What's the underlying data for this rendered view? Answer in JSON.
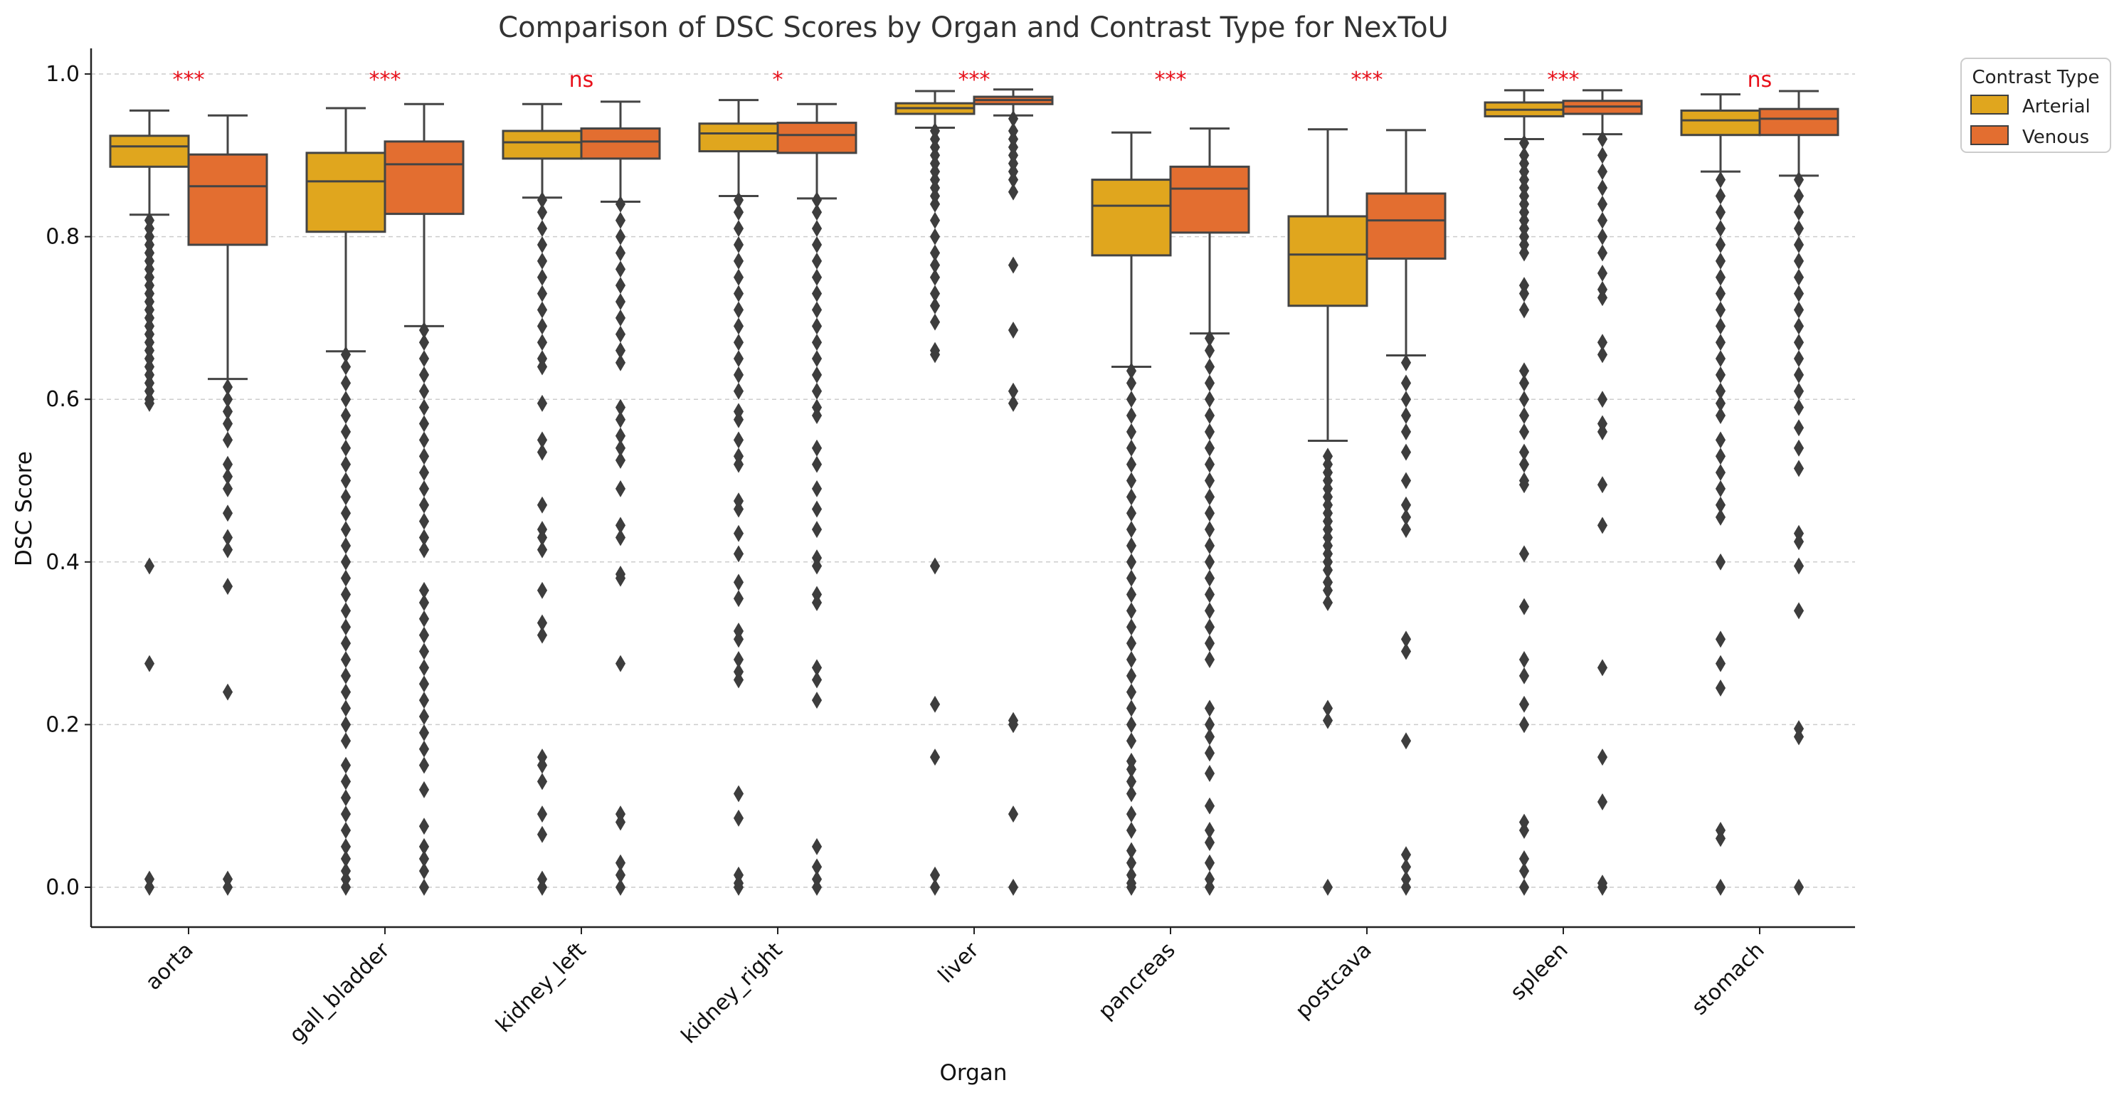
{
  "chart_data": {
    "type": "box",
    "title": "Comparison of DSC Scores by Organ and Contrast Type for NexToU",
    "xlabel": "Organ",
    "ylabel": "DSC Score",
    "ylim": [
      -0.05,
      1.03
    ],
    "yticks": [
      "0.0",
      "0.2",
      "0.4",
      "0.6",
      "0.8",
      "1.0"
    ],
    "grid": "horizontal dashed",
    "legend": {
      "title": "Contrast Type",
      "position": "top-right outside"
    },
    "categories": [
      "aorta",
      "gall_bladder",
      "kidney_left",
      "kidney_right",
      "liver",
      "pancreas",
      "postcava",
      "spleen",
      "stomach"
    ],
    "significance": [
      "***",
      "***",
      "ns",
      "*",
      "***",
      "***",
      "***",
      "***",
      "ns"
    ],
    "series": [
      {
        "name": "Arterial",
        "color": "#e0a61e",
        "boxes": [
          {
            "whisker_low": 0.827,
            "q1": 0.886,
            "median": 0.911,
            "q3": 0.924,
            "whisker_high": 0.955,
            "outliers": [
              0.82,
              0.81,
              0.8,
              0.79,
              0.78,
              0.77,
              0.76,
              0.75,
              0.74,
              0.73,
              0.72,
              0.71,
              0.7,
              0.69,
              0.68,
              0.67,
              0.66,
              0.65,
              0.64,
              0.63,
              0.62,
              0.61,
              0.6,
              0.595,
              0.395,
              0.275,
              0.01,
              0.0
            ]
          },
          {
            "whisker_low": 0.659,
            "q1": 0.806,
            "median": 0.868,
            "q3": 0.903,
            "whisker_high": 0.958,
            "outliers": [
              0.655,
              0.64,
              0.62,
              0.6,
              0.58,
              0.56,
              0.54,
              0.52,
              0.5,
              0.48,
              0.46,
              0.44,
              0.42,
              0.4,
              0.38,
              0.36,
              0.34,
              0.32,
              0.3,
              0.28,
              0.26,
              0.24,
              0.22,
              0.2,
              0.18,
              0.15,
              0.13,
              0.11,
              0.09,
              0.07,
              0.05,
              0.035,
              0.02,
              0.01,
              0.0
            ]
          },
          {
            "whisker_low": 0.848,
            "q1": 0.896,
            "median": 0.916,
            "q3": 0.93,
            "whisker_high": 0.963,
            "outliers": [
              0.845,
              0.83,
              0.81,
              0.79,
              0.77,
              0.75,
              0.73,
              0.71,
              0.69,
              0.67,
              0.65,
              0.64,
              0.595,
              0.55,
              0.535,
              0.47,
              0.44,
              0.43,
              0.415,
              0.365,
              0.325,
              0.31,
              0.16,
              0.15,
              0.13,
              0.09,
              0.065,
              0.01,
              0.0
            ]
          },
          {
            "whisker_low": 0.85,
            "q1": 0.905,
            "median": 0.927,
            "q3": 0.939,
            "whisker_high": 0.968,
            "outliers": [
              0.845,
              0.83,
              0.81,
              0.79,
              0.77,
              0.75,
              0.73,
              0.71,
              0.69,
              0.67,
              0.65,
              0.63,
              0.61,
              0.585,
              0.575,
              0.55,
              0.53,
              0.52,
              0.475,
              0.465,
              0.435,
              0.41,
              0.375,
              0.355,
              0.315,
              0.305,
              0.28,
              0.265,
              0.255,
              0.115,
              0.085,
              0.015,
              0.005,
              0.0
            ]
          },
          {
            "whisker_low": 0.934,
            "q1": 0.951,
            "median": 0.958,
            "q3": 0.964,
            "whisker_high": 0.979,
            "outliers": [
              0.93,
              0.92,
              0.91,
              0.9,
              0.89,
              0.88,
              0.87,
              0.86,
              0.85,
              0.84,
              0.82,
              0.8,
              0.78,
              0.765,
              0.75,
              0.73,
              0.715,
              0.695,
              0.66,
              0.655,
              0.395,
              0.225,
              0.16,
              0.015,
              0.0
            ]
          },
          {
            "whisker_low": 0.64,
            "q1": 0.777,
            "median": 0.838,
            "q3": 0.87,
            "whisker_high": 0.928,
            "outliers": [
              0.635,
              0.62,
              0.6,
              0.58,
              0.56,
              0.54,
              0.52,
              0.5,
              0.48,
              0.46,
              0.44,
              0.42,
              0.4,
              0.38,
              0.36,
              0.34,
              0.32,
              0.3,
              0.28,
              0.26,
              0.24,
              0.22,
              0.2,
              0.18,
              0.155,
              0.145,
              0.13,
              0.115,
              0.09,
              0.07,
              0.045,
              0.03,
              0.015,
              0.005,
              0.0
            ]
          },
          {
            "whisker_low": 0.549,
            "q1": 0.715,
            "median": 0.778,
            "q3": 0.825,
            "whisker_high": 0.932,
            "outliers": [
              0.53,
              0.52,
              0.51,
              0.5,
              0.49,
              0.48,
              0.47,
              0.46,
              0.45,
              0.44,
              0.43,
              0.42,
              0.41,
              0.4,
              0.39,
              0.375,
              0.365,
              0.35,
              0.22,
              0.205,
              0.0
            ]
          },
          {
            "whisker_low": 0.92,
            "q1": 0.948,
            "median": 0.956,
            "q3": 0.965,
            "whisker_high": 0.98,
            "outliers": [
              0.915,
              0.9,
              0.89,
              0.88,
              0.87,
              0.86,
              0.85,
              0.84,
              0.83,
              0.82,
              0.81,
              0.8,
              0.79,
              0.78,
              0.74,
              0.73,
              0.71,
              0.635,
              0.62,
              0.6,
              0.58,
              0.56,
              0.535,
              0.52,
              0.5,
              0.495,
              0.41,
              0.345,
              0.28,
              0.26,
              0.225,
              0.2,
              0.08,
              0.07,
              0.035,
              0.02,
              0.0
            ]
          },
          {
            "whisker_low": 0.88,
            "q1": 0.925,
            "median": 0.943,
            "q3": 0.955,
            "whisker_high": 0.975,
            "outliers": [
              0.87,
              0.85,
              0.83,
              0.81,
              0.79,
              0.77,
              0.75,
              0.73,
              0.71,
              0.69,
              0.67,
              0.65,
              0.63,
              0.61,
              0.595,
              0.58,
              0.55,
              0.53,
              0.51,
              0.49,
              0.47,
              0.455,
              0.4,
              0.305,
              0.275,
              0.245,
              0.07,
              0.06,
              0.0
            ]
          }
        ]
      },
      {
        "name": "Venous",
        "color": "#e36e30",
        "boxes": [
          {
            "whisker_low": 0.625,
            "q1": 0.79,
            "median": 0.862,
            "q3": 0.901,
            "whisker_high": 0.949,
            "outliers": [
              0.615,
              0.6,
              0.585,
              0.57,
              0.55,
              0.52,
              0.505,
              0.49,
              0.46,
              0.43,
              0.415,
              0.37,
              0.24,
              0.01,
              0.0
            ]
          },
          {
            "whisker_low": 0.69,
            "q1": 0.828,
            "median": 0.889,
            "q3": 0.917,
            "whisker_high": 0.963,
            "outliers": [
              0.685,
              0.67,
              0.65,
              0.63,
              0.61,
              0.59,
              0.57,
              0.55,
              0.53,
              0.51,
              0.49,
              0.47,
              0.45,
              0.43,
              0.415,
              0.365,
              0.35,
              0.33,
              0.31,
              0.29,
              0.27,
              0.25,
              0.23,
              0.21,
              0.19,
              0.17,
              0.15,
              0.12,
              0.075,
              0.05,
              0.035,
              0.02,
              0.0
            ]
          },
          {
            "whisker_low": 0.843,
            "q1": 0.896,
            "median": 0.917,
            "q3": 0.933,
            "whisker_high": 0.966,
            "outliers": [
              0.84,
              0.82,
              0.8,
              0.78,
              0.76,
              0.74,
              0.72,
              0.7,
              0.68,
              0.66,
              0.645,
              0.59,
              0.575,
              0.555,
              0.54,
              0.525,
              0.49,
              0.445,
              0.43,
              0.385,
              0.38,
              0.275,
              0.09,
              0.08,
              0.03,
              0.015,
              0.0
            ]
          },
          {
            "whisker_low": 0.847,
            "q1": 0.903,
            "median": 0.925,
            "q3": 0.94,
            "whisker_high": 0.963,
            "outliers": [
              0.845,
              0.83,
              0.81,
              0.79,
              0.77,
              0.75,
              0.73,
              0.71,
              0.69,
              0.67,
              0.65,
              0.63,
              0.61,
              0.59,
              0.58,
              0.54,
              0.52,
              0.49,
              0.465,
              0.44,
              0.405,
              0.395,
              0.36,
              0.35,
              0.27,
              0.255,
              0.23,
              0.05,
              0.025,
              0.01,
              0.0
            ]
          },
          {
            "whisker_low": 0.949,
            "q1": 0.963,
            "median": 0.968,
            "q3": 0.972,
            "whisker_high": 0.981,
            "outliers": [
              0.945,
              0.93,
              0.92,
              0.91,
              0.9,
              0.89,
              0.88,
              0.87,
              0.855,
              0.765,
              0.685,
              0.61,
              0.595,
              0.205,
              0.2,
              0.09,
              0.0
            ]
          },
          {
            "whisker_low": 0.681,
            "q1": 0.805,
            "median": 0.859,
            "q3": 0.886,
            "whisker_high": 0.933,
            "outliers": [
              0.675,
              0.66,
              0.64,
              0.62,
              0.6,
              0.58,
              0.56,
              0.54,
              0.52,
              0.5,
              0.48,
              0.46,
              0.44,
              0.42,
              0.4,
              0.38,
              0.36,
              0.34,
              0.32,
              0.3,
              0.28,
              0.22,
              0.2,
              0.185,
              0.165,
              0.14,
              0.1,
              0.07,
              0.055,
              0.03,
              0.01,
              0.0
            ]
          },
          {
            "whisker_low": 0.654,
            "q1": 0.773,
            "median": 0.82,
            "q3": 0.853,
            "whisker_high": 0.931,
            "outliers": [
              0.645,
              0.62,
              0.6,
              0.58,
              0.56,
              0.535,
              0.5,
              0.47,
              0.455,
              0.44,
              0.305,
              0.29,
              0.18,
              0.04,
              0.025,
              0.01,
              0.0
            ]
          },
          {
            "whisker_low": 0.926,
            "q1": 0.951,
            "median": 0.96,
            "q3": 0.967,
            "whisker_high": 0.98,
            "outliers": [
              0.92,
              0.9,
              0.88,
              0.86,
              0.84,
              0.82,
              0.8,
              0.78,
              0.755,
              0.735,
              0.725,
              0.67,
              0.655,
              0.6,
              0.57,
              0.56,
              0.495,
              0.445,
              0.27,
              0.16,
              0.105,
              0.005,
              0.0
            ]
          },
          {
            "whisker_low": 0.875,
            "q1": 0.925,
            "median": 0.945,
            "q3": 0.957,
            "whisker_high": 0.979,
            "outliers": [
              0.87,
              0.85,
              0.83,
              0.81,
              0.79,
              0.77,
              0.75,
              0.73,
              0.71,
              0.69,
              0.67,
              0.65,
              0.63,
              0.61,
              0.59,
              0.565,
              0.54,
              0.515,
              0.435,
              0.425,
              0.395,
              0.34,
              0.195,
              0.185,
              0.0
            ]
          }
        ]
      }
    ]
  }
}
